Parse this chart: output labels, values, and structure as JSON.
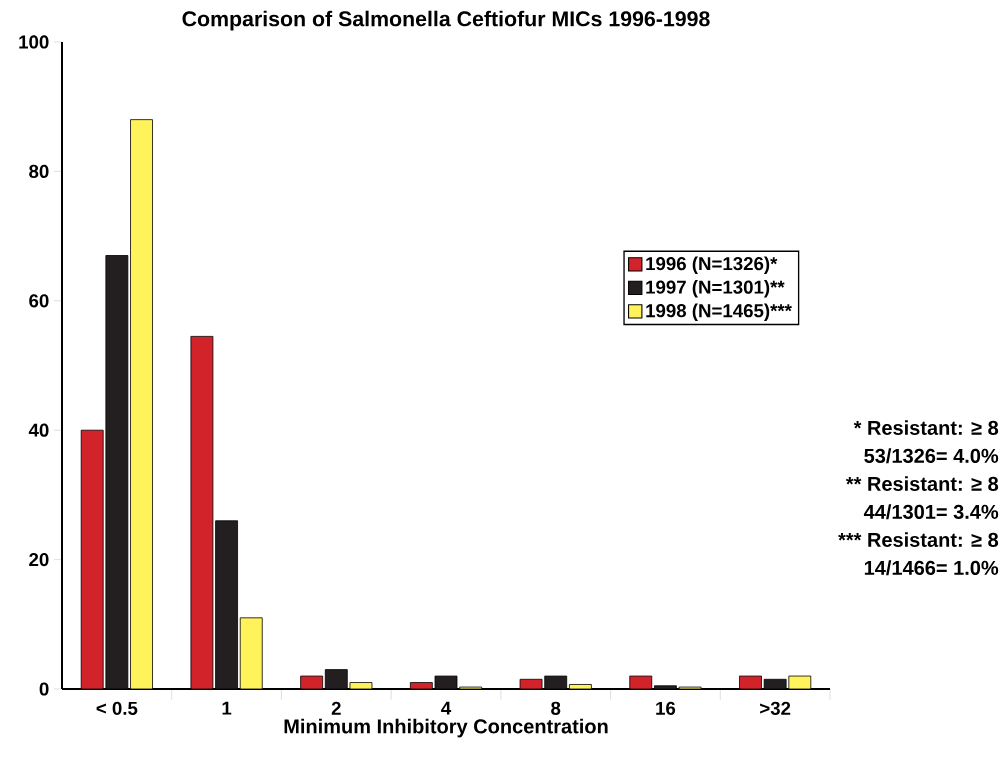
{
  "chart_data": {
    "type": "bar",
    "title": "Comparison of Salmonella Ceftiofur MICs 1996-1998",
    "xlabel": "Minimum Inhibitory Concentration",
    "categories": [
      "< 0.5",
      "1",
      "2",
      "4",
      "8",
      "16",
      ">32"
    ],
    "series": [
      {
        "name": "1996 (N=1326)*",
        "color": "#d2232a",
        "values": [
          40,
          54.5,
          2,
          1,
          1.5,
          2,
          2
        ]
      },
      {
        "name": "1997 (N=1301)**",
        "color": "#231f20",
        "values": [
          67,
          26,
          3,
          2,
          2,
          0.5,
          1.5
        ]
      },
      {
        "name": "1998 (N=1465)***",
        "color": "#fff35c",
        "values": [
          88,
          11,
          1,
          0.3,
          0.7,
          0.3,
          2
        ]
      }
    ],
    "ylim": [
      0,
      100
    ],
    "yticks": [
      0,
      20,
      40,
      60,
      80,
      100
    ],
    "legend": "right",
    "annotations": [
      "*    Resistant: ≥ 8",
      "53/1326= 4.0%",
      "**  Resistant: ≥ 8",
      "44/1301= 3.4%",
      "*** Resistant: ≥ 8",
      "14/1466= 1.0%"
    ]
  }
}
